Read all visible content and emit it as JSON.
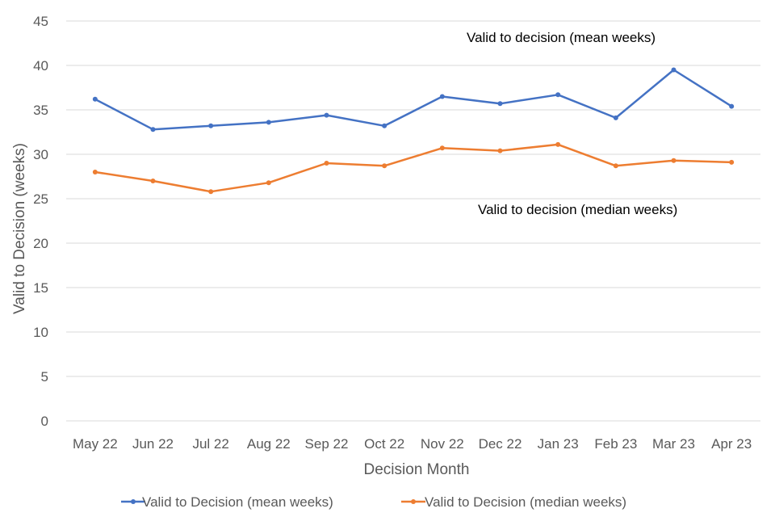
{
  "chart_data": {
    "type": "line",
    "title": "",
    "xlabel": "Decision Month",
    "ylabel": "Valid to Decision (weeks)",
    "ylim": [
      0,
      45
    ],
    "ytick_step": 5,
    "yticks": [
      "0",
      "5",
      "10",
      "15",
      "20",
      "25",
      "30",
      "35",
      "40",
      "45"
    ],
    "grid": true,
    "legend_position": "bottom",
    "categories": [
      "May 22",
      "Jun 22",
      "Jul 22",
      "Aug 22",
      "Sep 22",
      "Oct 22",
      "Nov 22",
      "Dec 22",
      "Jan 23",
      "Feb 23",
      "Mar 23",
      "Apr 23"
    ],
    "series": [
      {
        "name": "Valid to Decision  (mean weeks)",
        "color": "#4472c4",
        "values": [
          36.2,
          32.8,
          33.2,
          33.6,
          34.4,
          33.2,
          36.5,
          35.7,
          36.7,
          34.1,
          39.5,
          35.4
        ]
      },
      {
        "name": "Valid to Decision  (median weeks)",
        "color": "#ed7d31",
        "values": [
          28.0,
          27.0,
          25.8,
          26.8,
          29.0,
          28.7,
          30.7,
          30.4,
          31.1,
          28.7,
          29.3,
          29.1
        ]
      }
    ],
    "annotations": [
      {
        "text": "Valid to decision (mean weeks)",
        "series": 0
      },
      {
        "text": "Valid to decision (median weeks)",
        "series": 1
      }
    ]
  }
}
